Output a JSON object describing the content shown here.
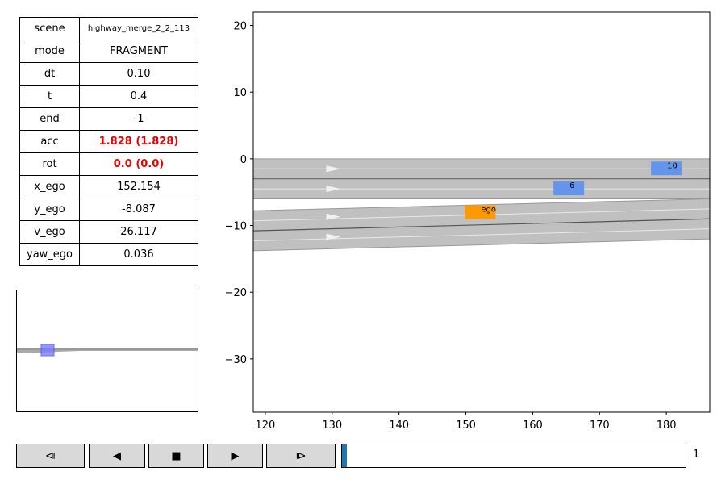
{
  "info_table": [
    {
      "key": "scene",
      "value": "highway_merge_2_2_113",
      "style": "small"
    },
    {
      "key": "mode",
      "value": "FRAGMENT",
      "style": ""
    },
    {
      "key": "dt",
      "value": "0.10",
      "style": ""
    },
    {
      "key": "t",
      "value": "0.4",
      "style": ""
    },
    {
      "key": "end",
      "value": "-1",
      "style": ""
    },
    {
      "key": "acc",
      "value": "1.828 (1.828)",
      "style": "red"
    },
    {
      "key": "rot",
      "value": "0.0 (0.0)",
      "style": "red"
    },
    {
      "key": "x_ego",
      "value": "152.154",
      "style": ""
    },
    {
      "key": "y_ego",
      "value": "-8.087",
      "style": ""
    },
    {
      "key": "v_ego",
      "value": "26.117",
      "style": ""
    },
    {
      "key": "yaw_ego",
      "value": "0.036",
      "style": ""
    }
  ],
  "controls": {
    "buttons": [
      {
        "name": "step-back-button",
        "icon": "⧏",
        "icon_name": "step-back-icon"
      },
      {
        "name": "play-reverse-button",
        "icon": "◀",
        "icon_name": "play-reverse-icon"
      },
      {
        "name": "stop-button",
        "icon": "■",
        "icon_name": "stop-icon"
      },
      {
        "name": "play-button",
        "icon": "▶",
        "icon_name": "play-icon"
      },
      {
        "name": "step-forward-button",
        "icon": "⧐",
        "icon_name": "step-forward-icon"
      }
    ],
    "frame_value": "1",
    "progress_fraction": 0.014
  },
  "chart_data": {
    "type": "scatter",
    "x_ticks": [
      120,
      130,
      140,
      150,
      160,
      170,
      180
    ],
    "y_ticks": [
      20,
      10,
      0,
      -10,
      -20,
      -30
    ],
    "xlim": [
      118.2,
      186.5
    ],
    "ylim": [
      -38.0,
      22.0
    ],
    "grid": false,
    "vehicles": [
      {
        "label": "ego",
        "x": 152.154,
        "y": -8.087,
        "color": "#ff9900"
      },
      {
        "label": "6",
        "x": 165.4,
        "y": -4.5,
        "color": "#6495ed"
      },
      {
        "label": "10",
        "x": 180.0,
        "y": -1.5,
        "color": "#6495ed"
      }
    ],
    "road_color": "#c0c0c0",
    "lane_line_color": "#e8e8e8"
  }
}
